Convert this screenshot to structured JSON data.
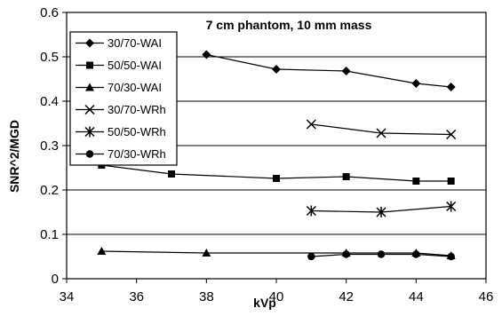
{
  "chart_data": {
    "type": "line",
    "title": "7 cm phantom, 10 mm mass",
    "xlabel": "kVp",
    "ylabel": "SNR^2/MGD",
    "xlim": [
      34,
      46
    ],
    "ylim": [
      0,
      0.6
    ],
    "x_ticks": [
      "34",
      "36",
      "38",
      "40",
      "42",
      "44",
      "46"
    ],
    "y_ticks": [
      "0",
      "0.1",
      "0.2",
      "0.3",
      "0.4",
      "0.5",
      "0.6"
    ],
    "grid": "horizontal",
    "legend_position": "top-left",
    "series": [
      {
        "name": "30/70-WAI",
        "marker": "diamond",
        "x": [
          38,
          40,
          42,
          44,
          45
        ],
        "y": [
          0.505,
          0.472,
          0.468,
          0.44,
          0.432
        ]
      },
      {
        "name": "50/50-WAI",
        "marker": "square",
        "x": [
          35,
          37,
          40,
          42,
          44,
          45
        ],
        "y": [
          0.256,
          0.236,
          0.226,
          0.23,
          0.22,
          0.22
        ]
      },
      {
        "name": "70/30-WAI",
        "marker": "triangle",
        "x": [
          35,
          38,
          42,
          44,
          45
        ],
        "y": [
          0.062,
          0.058,
          0.058,
          0.058,
          0.052
        ]
      },
      {
        "name": "30/70-WRh",
        "marker": "x",
        "x": [
          41,
          43,
          45
        ],
        "y": [
          0.348,
          0.328,
          0.325
        ]
      },
      {
        "name": "50/50-WRh",
        "marker": "star",
        "x": [
          41,
          43,
          45
        ],
        "y": [
          0.153,
          0.15,
          0.163
        ]
      },
      {
        "name": "70/30-WRh",
        "marker": "circle",
        "x": [
          41,
          42,
          43,
          44,
          45
        ],
        "y": [
          0.05,
          0.055,
          0.055,
          0.055,
          0.05
        ]
      }
    ]
  }
}
